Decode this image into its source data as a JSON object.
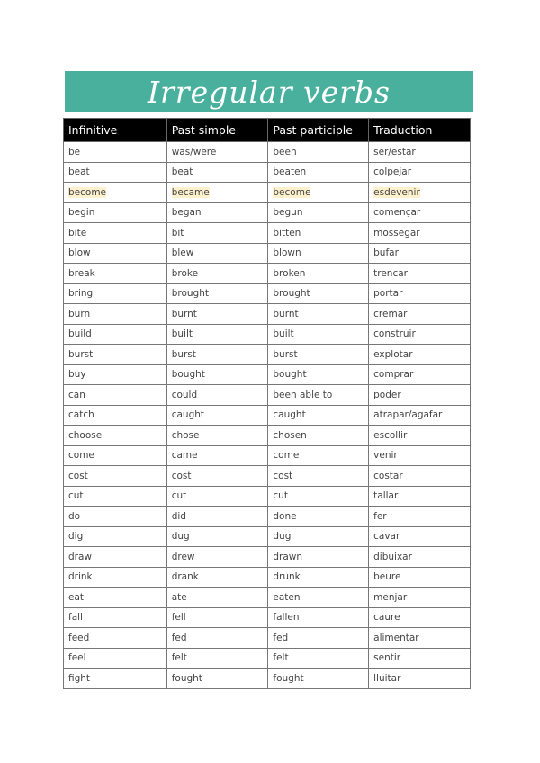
{
  "title": "Irregular verbs",
  "colors": {
    "banner": "#48b09c",
    "header": "#000000",
    "highlight": "#fdf0cc"
  },
  "headers": [
    "Infinitive",
    "Past simple",
    "Past participle",
    "Traduction"
  ],
  "rows": [
    [
      "be",
      "was/were",
      "been",
      "ser/estar"
    ],
    [
      "beat",
      "beat",
      "beaten",
      "colpejar"
    ],
    [
      "become",
      "became",
      "become",
      "esdevenir"
    ],
    [
      "begin",
      "began",
      "begun",
      "començar"
    ],
    [
      "bite",
      "bit",
      "bitten",
      "mossegar"
    ],
    [
      "blow",
      "blew",
      "blown",
      "bufar"
    ],
    [
      "break",
      "broke",
      "broken",
      "trencar"
    ],
    [
      "bring",
      "brought",
      "brought",
      "portar"
    ],
    [
      "burn",
      "burnt",
      "burnt",
      "cremar"
    ],
    [
      "build",
      "built",
      "built",
      "construir"
    ],
    [
      "burst",
      "burst",
      "burst",
      "explotar"
    ],
    [
      "buy",
      "bought",
      "bought",
      "comprar"
    ],
    [
      "can",
      "could",
      "been able to",
      "poder"
    ],
    [
      "catch",
      "caught",
      "caught",
      "atrapar/agafar"
    ],
    [
      "choose",
      "chose",
      "chosen",
      "escollir"
    ],
    [
      "come",
      "came",
      "come",
      "venir"
    ],
    [
      "cost",
      "cost",
      "cost",
      "costar"
    ],
    [
      "cut",
      "cut",
      "cut",
      "tallar"
    ],
    [
      "do",
      "did",
      "done",
      "fer"
    ],
    [
      "dig",
      "dug",
      "dug",
      "cavar"
    ],
    [
      "draw",
      "drew",
      "drawn",
      "dibuixar"
    ],
    [
      "drink",
      "drank",
      "drunk",
      "beure"
    ],
    [
      "eat",
      "ate",
      "eaten",
      "menjar"
    ],
    [
      "fall",
      "fell",
      "fallen",
      "caure"
    ],
    [
      "feed",
      "fed",
      "fed",
      "alimentar"
    ],
    [
      "feel",
      "felt",
      "felt",
      "sentir"
    ],
    [
      "fight",
      "fought",
      "fought",
      "lluitar"
    ]
  ],
  "highlighted_row": 2
}
